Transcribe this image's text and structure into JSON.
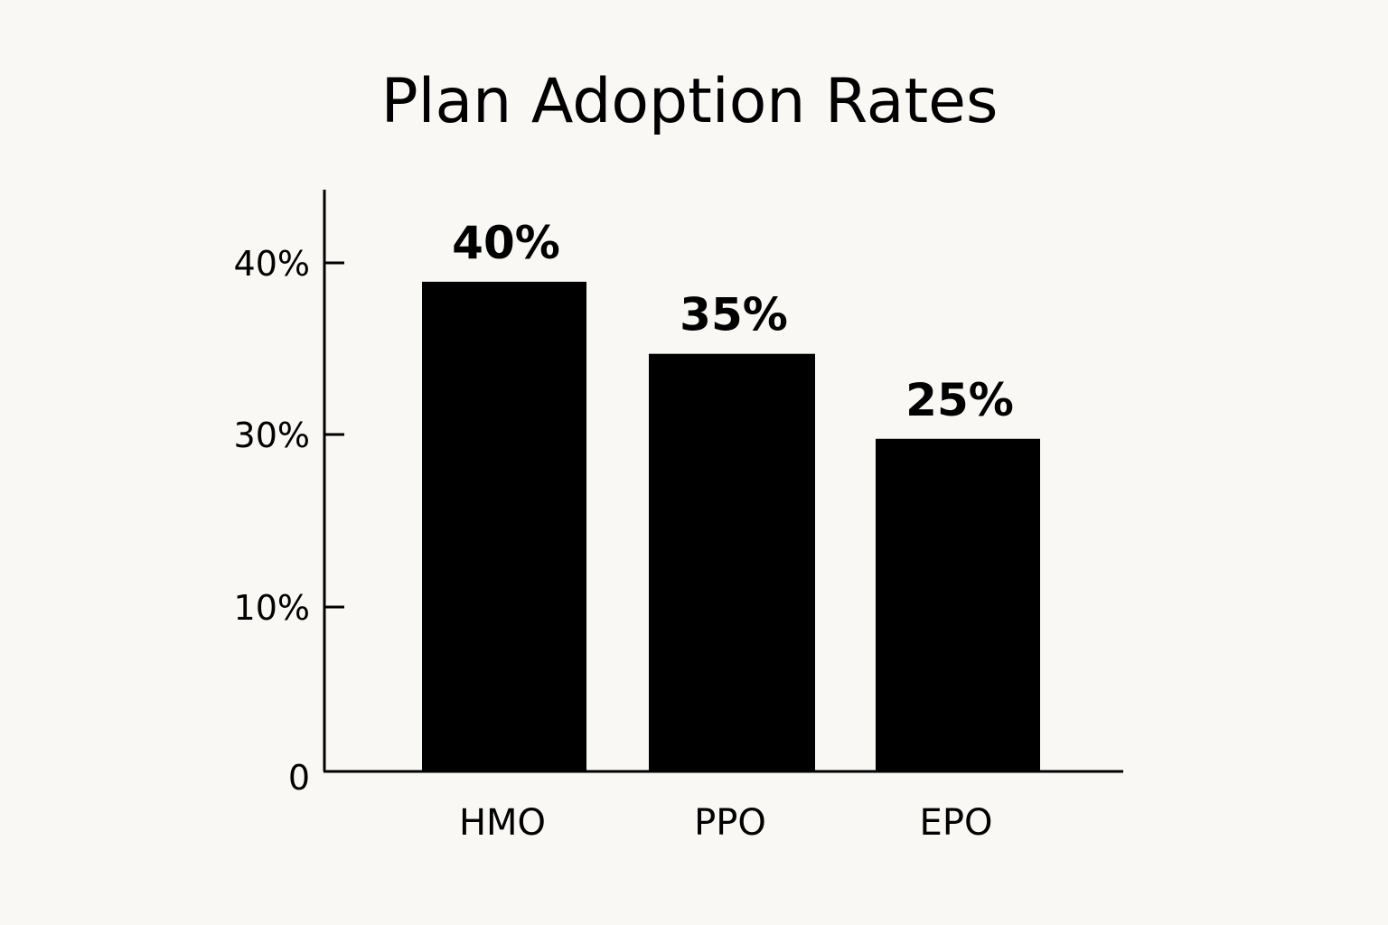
{
  "chart_data": {
    "type": "bar",
    "title": "Plan Adoption Rates",
    "xlabel": "",
    "ylabel": "",
    "categories": [
      "HMO",
      "PPO",
      "EPO"
    ],
    "values": [
      40,
      35,
      25
    ],
    "data_labels": [
      "40%",
      "35%",
      "25%"
    ],
    "y_ticks": [
      {
        "value": 0,
        "label": "0"
      },
      {
        "value": 10,
        "label": "10%"
      },
      {
        "value": 30,
        "label": "30%"
      },
      {
        "value": 40,
        "label": "40%"
      }
    ],
    "grid": false,
    "legend": "none",
    "bar_color": "#000000",
    "background": "#f9f8f4"
  }
}
